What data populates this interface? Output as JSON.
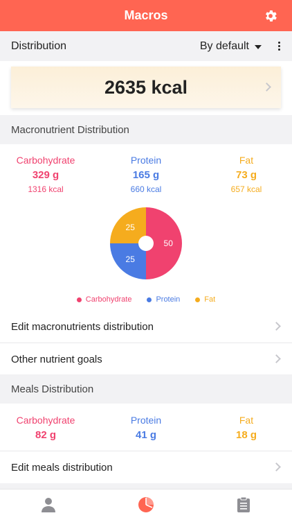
{
  "header": {
    "title": "Macros",
    "settings_icon": "gear-icon"
  },
  "distribution_bar": {
    "label": "Distribution",
    "dropdown_value": "By default",
    "menu_icon": "more-vertical-icon"
  },
  "total": {
    "kcal_text": "2635 kcal"
  },
  "macronutrient_section": {
    "title": "Macronutrient Distribution",
    "carbohydrate": {
      "label": "Carbohydrate",
      "grams": "329 g",
      "kcal": "1316 kcal"
    },
    "protein": {
      "label": "Protein",
      "grams": "165 g",
      "kcal": "660 kcal"
    },
    "fat": {
      "label": "Fat",
      "grams": "73 g",
      "kcal": "657 kcal"
    },
    "colors": {
      "carbohydrate": "#f0426f",
      "protein": "#4a7be3",
      "fat": "#f5ac1e"
    }
  },
  "chart_data": {
    "type": "pie",
    "donut_hole": true,
    "slices": [
      {
        "name": "Carbohydrate",
        "value": 50,
        "label": "50",
        "color": "#f0426f"
      },
      {
        "name": "Protein",
        "value": 25,
        "label": "25",
        "color": "#4a7be3"
      },
      {
        "name": "Fat",
        "value": 25,
        "label": "25",
        "color": "#f5ac1e"
      }
    ],
    "legend": [
      "Carbohydrate",
      "Protein",
      "Fat"
    ],
    "legend_position": "bottom"
  },
  "rows": {
    "edit_macros": "Edit macronutrients distribution",
    "other_goals": "Other nutrient goals",
    "edit_meals": "Edit meals distribution"
  },
  "meals_section": {
    "title": "Meals Distribution",
    "carbohydrate": {
      "label": "Carbohydrate",
      "grams": "82 g"
    },
    "protein": {
      "label": "Protein",
      "grams": "41 g"
    },
    "fat": {
      "label": "Fat",
      "grams": "18 g"
    }
  },
  "tabbar": {
    "tabs": [
      {
        "icon": "person-icon",
        "active": false
      },
      {
        "icon": "pie-chart-icon",
        "active": true
      },
      {
        "icon": "clipboard-icon",
        "active": false
      }
    ],
    "active_color": "#ff6552",
    "inactive_color": "#8e8e93"
  }
}
